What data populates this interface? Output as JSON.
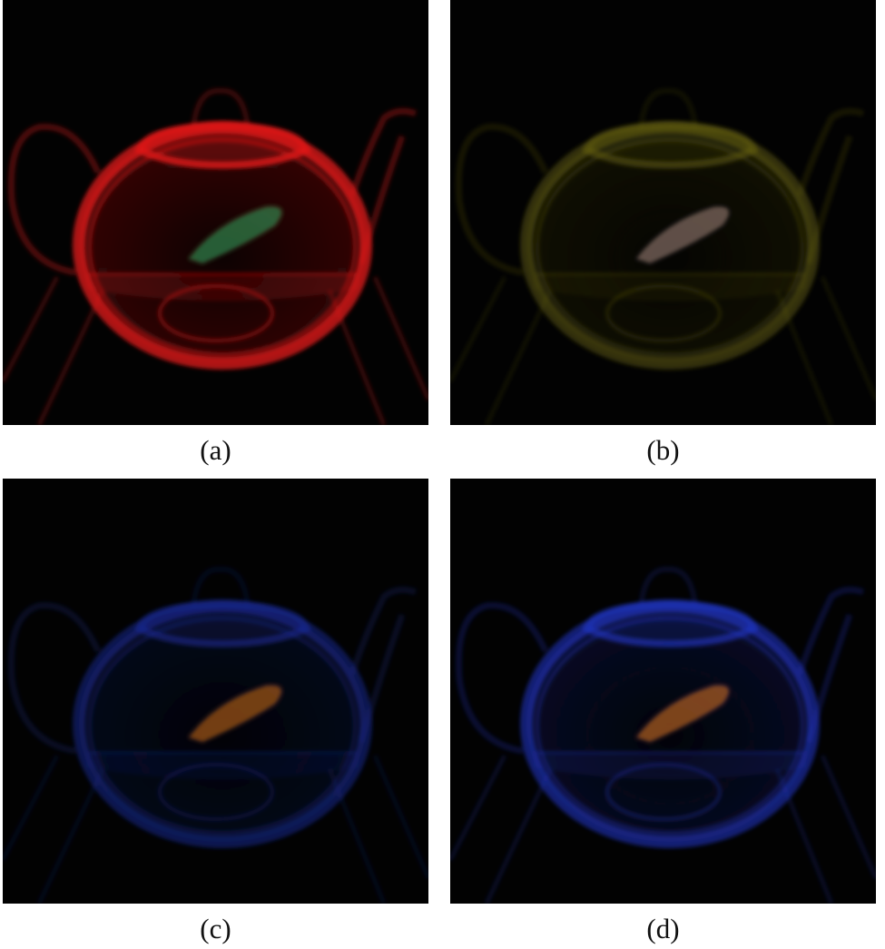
{
  "panels": [
    {
      "id": "a",
      "caption": "(a)",
      "tint": "#e01818",
      "glow": 0.95,
      "fish": "#3aa860"
    },
    {
      "id": "b",
      "caption": "(b)",
      "tint": "#6f6a14",
      "glow": 0.55,
      "fish": "#a88a80"
    },
    {
      "id": "c",
      "caption": "(c)",
      "tint": "#1c2ea0",
      "glow": 0.6,
      "fish": "#d0701c"
    },
    {
      "id": "d",
      "caption": "(d)",
      "tint": "#2236c8",
      "glow": 0.7,
      "fish": "#e0782a"
    }
  ]
}
